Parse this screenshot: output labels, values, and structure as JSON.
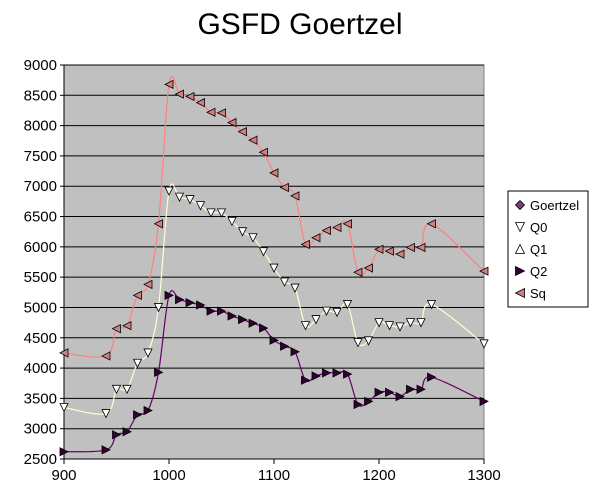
{
  "chart_data": {
    "type": "line",
    "title": "GSFD Goertzel",
    "xlabel": "",
    "ylabel": "",
    "xlim": [
      900,
      1300
    ],
    "ylim": [
      2500,
      9000
    ],
    "x_ticks": [
      "900",
      "1000",
      "1100",
      "1200",
      "1300"
    ],
    "y_ticks": [
      "2500",
      "3000",
      "3500",
      "4000",
      "4500",
      "5000",
      "5500",
      "6000",
      "6500",
      "7000",
      "7500",
      "8000",
      "8500",
      "9000"
    ],
    "grid": true,
    "plot_background": "#c0c0c0",
    "legend_position": "right",
    "series": [
      {
        "name": "Goertzel",
        "marker": "diamond",
        "color": "#7b3f7b",
        "curve_color": "#7b3f7b",
        "x": [],
        "y": []
      },
      {
        "name": "Q0",
        "marker": "triangle-down",
        "color": "#ffffff",
        "curve_color": "#ffffcc",
        "x": [
          900,
          940,
          950,
          960,
          970,
          980,
          990,
          1000,
          1010,
          1020,
          1030,
          1040,
          1050,
          1060,
          1070,
          1080,
          1090,
          1100,
          1110,
          1120,
          1130,
          1140,
          1150,
          1160,
          1170,
          1180,
          1190,
          1200,
          1210,
          1220,
          1230,
          1240,
          1250,
          1300
        ],
        "y": [
          3350,
          3250,
          3650,
          3650,
          4080,
          4250,
          5000,
          6920,
          6820,
          6780,
          6680,
          6560,
          6560,
          6420,
          6250,
          6150,
          5920,
          5650,
          5420,
          5320,
          4700,
          4800,
          4940,
          4920,
          5050,
          4420,
          4450,
          4750,
          4700,
          4680,
          4750,
          4750,
          5050,
          4400
        ]
      },
      {
        "name": "Q1",
        "marker": "triangle-up",
        "color": "#ffffff",
        "curve_color": "#ffffcc",
        "x": [],
        "y": []
      },
      {
        "name": "Q2",
        "marker": "triangle-right",
        "color": "#330033",
        "curve_color": "#660066",
        "x": [
          900,
          940,
          950,
          960,
          970,
          980,
          990,
          1000,
          1010,
          1020,
          1030,
          1040,
          1050,
          1060,
          1070,
          1080,
          1090,
          1100,
          1110,
          1120,
          1130,
          1140,
          1150,
          1160,
          1170,
          1180,
          1190,
          1200,
          1210,
          1220,
          1230,
          1240,
          1250,
          1300
        ],
        "y": [
          2620,
          2650,
          2900,
          2950,
          3230,
          3300,
          3930,
          5200,
          5130,
          5080,
          5040,
          4940,
          4940,
          4860,
          4800,
          4740,
          4660,
          4460,
          4360,
          4270,
          3800,
          3870,
          3920,
          3920,
          3900,
          3400,
          3450,
          3600,
          3600,
          3530,
          3650,
          3650,
          3850,
          3450
        ]
      },
      {
        "name": "Sq",
        "marker": "triangle-left",
        "color": "#d08080",
        "curve_color": "#ff8080",
        "x": [
          900,
          940,
          950,
          960,
          970,
          980,
          990,
          1000,
          1010,
          1020,
          1030,
          1040,
          1050,
          1060,
          1070,
          1080,
          1090,
          1100,
          1110,
          1120,
          1130,
          1140,
          1150,
          1160,
          1170,
          1180,
          1190,
          1200,
          1210,
          1220,
          1230,
          1240,
          1250,
          1300
        ],
        "y": [
          4250,
          4200,
          4650,
          4700,
          5200,
          5380,
          6380,
          8680,
          8520,
          8480,
          8380,
          8220,
          8210,
          8050,
          7900,
          7760,
          7560,
          7220,
          6980,
          6840,
          6040,
          6150,
          6270,
          6320,
          6380,
          5580,
          5650,
          5960,
          5930,
          5880,
          5990,
          5990,
          6380,
          5600
        ]
      }
    ]
  }
}
